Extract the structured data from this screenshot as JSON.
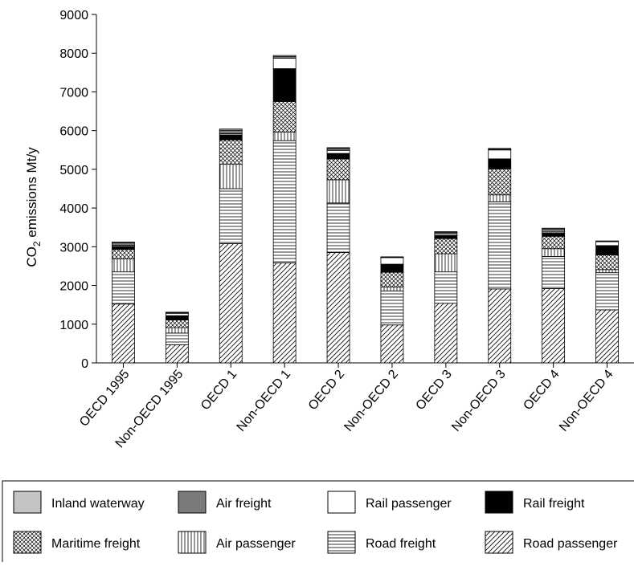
{
  "chart_data": {
    "type": "bar",
    "stacked": true,
    "title": "",
    "xlabel": "",
    "ylabel_main": "CO",
    "ylabel_sub": "2",
    "ylabel_rest": " emissions Mt/y",
    "ylim": [
      0,
      9000
    ],
    "yticks": [
      "0",
      "1000",
      "2000",
      "3000",
      "4000",
      "5000",
      "6000",
      "7000",
      "8000",
      "9000"
    ],
    "categories": [
      "OECD 1995",
      "Non-OECD 1995",
      "OECD 1",
      "Non-OECD 1",
      "OECD 2",
      "Non-OECD 2",
      "OECD 3",
      "Non-OECD 3",
      "OECD 4",
      "Non-OECD 4"
    ],
    "grid": false,
    "legend_position": "bottom",
    "legend": [
      "Inland waterway",
      "Air freight",
      "Rail passenger",
      "Rail freight",
      "Maritime freight",
      "Air passenger",
      "Road freight",
      "Road passenger"
    ],
    "series": [
      {
        "name": "Road passenger",
        "pattern": "diagonal-hatch",
        "values": [
          1520,
          470,
          3080,
          2580,
          2850,
          980,
          1540,
          1910,
          1920,
          1370
        ]
      },
      {
        "name": "Road freight",
        "pattern": "horizontal-lines",
        "values": [
          830,
          300,
          1420,
          3160,
          1280,
          880,
          810,
          2250,
          830,
          960
        ]
      },
      {
        "name": "Air passenger",
        "pattern": "vertical-lines",
        "values": [
          340,
          140,
          630,
          220,
          600,
          100,
          470,
          180,
          200,
          80
        ]
      },
      {
        "name": "Maritime freight",
        "pattern": "crosshatch",
        "values": [
          240,
          200,
          630,
          790,
          540,
          380,
          390,
          670,
          320,
          380
        ]
      },
      {
        "name": "Rail freight",
        "pattern": "black",
        "values": [
          80,
          110,
          130,
          850,
          140,
          210,
          80,
          260,
          80,
          240
        ]
      },
      {
        "name": "Rail passenger",
        "pattern": "white",
        "values": [
          30,
          60,
          30,
          270,
          80,
          170,
          40,
          230,
          30,
          100
        ]
      },
      {
        "name": "Air freight",
        "pattern": "dark-gray",
        "values": [
          60,
          20,
          90,
          40,
          50,
          10,
          40,
          20,
          80,
          10
        ]
      },
      {
        "name": "Inland waterway",
        "pattern": "light-gray",
        "values": [
          20,
          10,
          30,
          30,
          20,
          10,
          20,
          20,
          20,
          10
        ]
      }
    ]
  }
}
